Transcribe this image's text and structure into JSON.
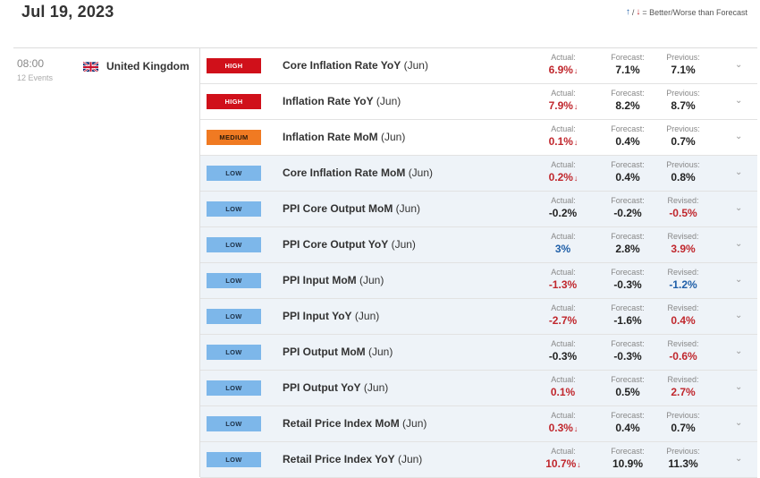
{
  "header": {
    "date": "Jul 19, 2023",
    "legend_better": "↑",
    "legend_sep": "/",
    "legend_worse": "↓",
    "legend_text": "= Better/Worse than Forecast"
  },
  "group": {
    "time": "08:00",
    "events_count": "12 Events",
    "country": "United Kingdom",
    "flag_icon": "uk-flag-icon"
  },
  "colors": {
    "high": "#d0101a",
    "medium": "#f07a22",
    "low": "#7db7ea",
    "worse": "#c0272d",
    "better": "#1f5fa8"
  },
  "rows": [
    {
      "impact": "HIGH",
      "level": "high",
      "name": "Core Inflation Rate YoY",
      "period": "(Jun)",
      "actual_label": "Actual:",
      "actual": "6.9%",
      "actual_dir": "worse",
      "arrow": "↓",
      "forecast_label": "Forecast:",
      "forecast": "7.1%",
      "prev_label": "Previous:",
      "previous": "7.1%",
      "prev_dir": "neutral"
    },
    {
      "impact": "HIGH",
      "level": "high",
      "name": "Inflation Rate YoY",
      "period": "(Jun)",
      "actual_label": "Actual:",
      "actual": "7.9%",
      "actual_dir": "worse",
      "arrow": "↓",
      "forecast_label": "Forecast:",
      "forecast": "8.2%",
      "prev_label": "Previous:",
      "previous": "8.7%",
      "prev_dir": "neutral"
    },
    {
      "impact": "MEDIUM",
      "level": "medium",
      "name": "Inflation Rate MoM",
      "period": "(Jun)",
      "actual_label": "Actual:",
      "actual": "0.1%",
      "actual_dir": "worse",
      "arrow": "↓",
      "forecast_label": "Forecast:",
      "forecast": "0.4%",
      "prev_label": "Previous:",
      "previous": "0.7%",
      "prev_dir": "neutral"
    },
    {
      "impact": "LOW",
      "level": "low",
      "name": "Core Inflation Rate MoM",
      "period": "(Jun)",
      "actual_label": "Actual:",
      "actual": "0.2%",
      "actual_dir": "worse",
      "arrow": "↓",
      "forecast_label": "Forecast:",
      "forecast": "0.4%",
      "prev_label": "Previous:",
      "previous": "0.8%",
      "prev_dir": "neutral"
    },
    {
      "impact": "LOW",
      "level": "low",
      "name": "PPI Core Output MoM",
      "period": "(Jun)",
      "actual_label": "Actual:",
      "actual": "-0.2%",
      "actual_dir": "neutral",
      "arrow": "",
      "forecast_label": "Forecast:",
      "forecast": "-0.2%",
      "prev_label": "Revised:",
      "previous": "-0.5%",
      "prev_dir": "worse"
    },
    {
      "impact": "LOW",
      "level": "low",
      "name": "PPI Core Output YoY",
      "period": "(Jun)",
      "actual_label": "Actual:",
      "actual": "3%",
      "actual_dir": "better",
      "arrow": "",
      "forecast_label": "Forecast:",
      "forecast": "2.8%",
      "prev_label": "Revised:",
      "previous": "3.9%",
      "prev_dir": "worse"
    },
    {
      "impact": "LOW",
      "level": "low",
      "name": "PPI Input MoM",
      "period": "(Jun)",
      "actual_label": "Actual:",
      "actual": "-1.3%",
      "actual_dir": "worse",
      "arrow": "",
      "forecast_label": "Forecast:",
      "forecast": "-0.3%",
      "prev_label": "Revised:",
      "previous": "-1.2%",
      "prev_dir": "better"
    },
    {
      "impact": "LOW",
      "level": "low",
      "name": "PPI Input YoY",
      "period": "(Jun)",
      "actual_label": "Actual:",
      "actual": "-2.7%",
      "actual_dir": "worse",
      "arrow": "",
      "forecast_label": "Forecast:",
      "forecast": "-1.6%",
      "prev_label": "Revised:",
      "previous": "0.4%",
      "prev_dir": "worse"
    },
    {
      "impact": "LOW",
      "level": "low",
      "name": "PPI Output MoM",
      "period": "(Jun)",
      "actual_label": "Actual:",
      "actual": "-0.3%",
      "actual_dir": "neutral",
      "arrow": "",
      "forecast_label": "Forecast:",
      "forecast": "-0.3%",
      "prev_label": "Revised:",
      "previous": "-0.6%",
      "prev_dir": "worse"
    },
    {
      "impact": "LOW",
      "level": "low",
      "name": "PPI Output YoY",
      "period": "(Jun)",
      "actual_label": "Actual:",
      "actual": "0.1%",
      "actual_dir": "worse",
      "arrow": "",
      "forecast_label": "Forecast:",
      "forecast": "0.5%",
      "prev_label": "Revised:",
      "previous": "2.7%",
      "prev_dir": "worse"
    },
    {
      "impact": "LOW",
      "level": "low",
      "name": "Retail Price Index MoM",
      "period": "(Jun)",
      "actual_label": "Actual:",
      "actual": "0.3%",
      "actual_dir": "worse",
      "arrow": "↓",
      "forecast_label": "Forecast:",
      "forecast": "0.4%",
      "prev_label": "Previous:",
      "previous": "0.7%",
      "prev_dir": "neutral"
    },
    {
      "impact": "LOW",
      "level": "low",
      "name": "Retail Price Index YoY",
      "period": "(Jun)",
      "actual_label": "Actual:",
      "actual": "10.7%",
      "actual_dir": "worse",
      "arrow": "↓",
      "forecast_label": "Forecast:",
      "forecast": "10.9%",
      "prev_label": "Previous:",
      "previous": "11.3%",
      "prev_dir": "neutral"
    }
  ]
}
